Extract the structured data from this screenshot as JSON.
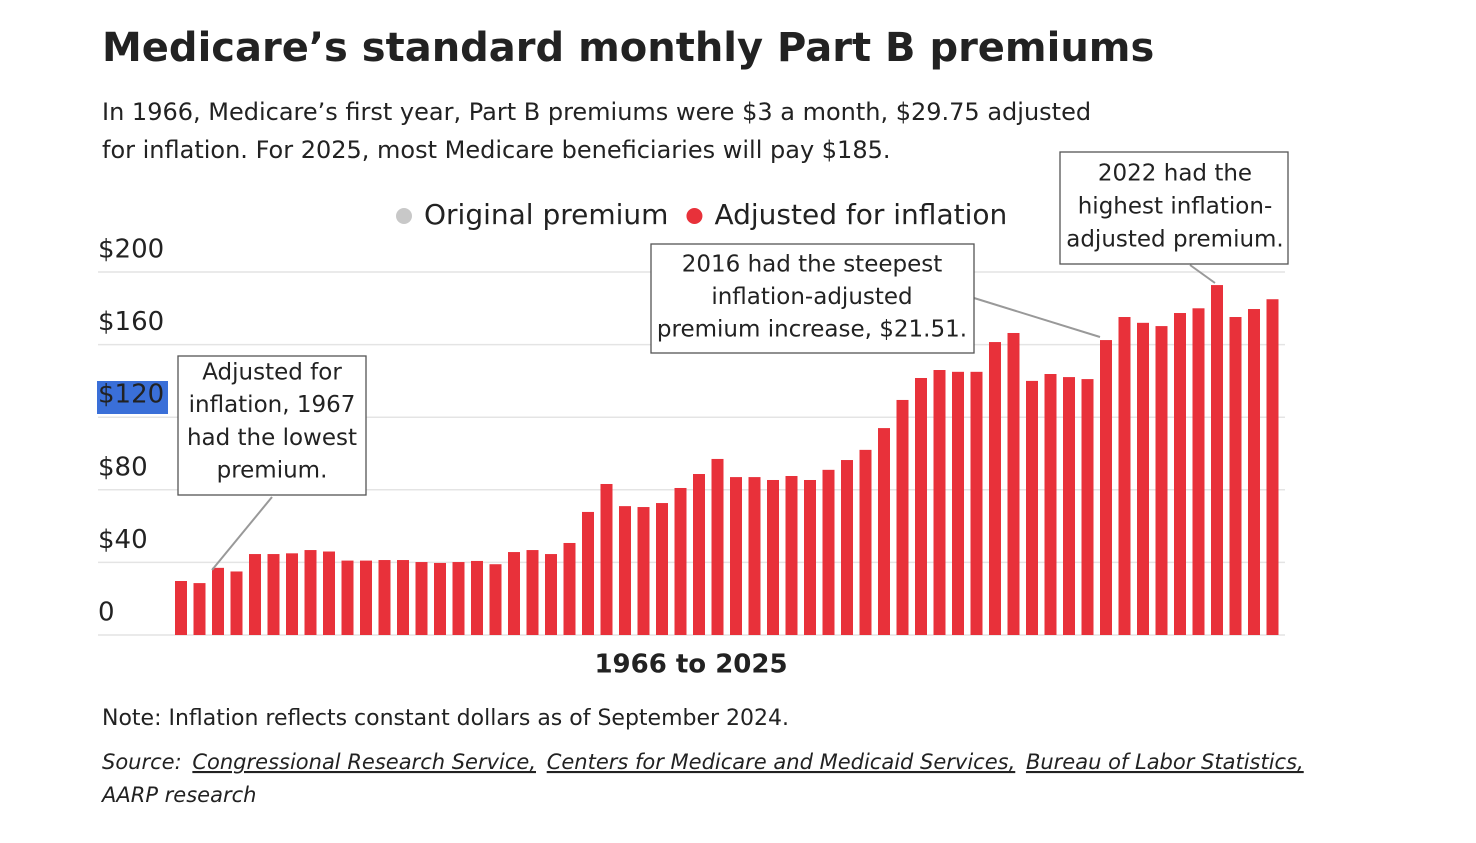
{
  "chart_data": {
    "type": "bar",
    "title": "Medicare’s standard monthly Part B premiums",
    "subtitle": [
      "In 1966, Medicare’s first year, Part B premiums were $3 a month, $29.75 adjusted",
      "for inflation. For 2025, most Medicare beneficiaries will pay $185."
    ],
    "x_label": "1966 to 2025",
    "series": [
      {
        "name": "Original premium",
        "color": "#c8c8c8",
        "values": [
          null,
          null,
          null,
          null,
          null,
          null,
          null,
          null,
          null,
          null,
          null,
          null,
          null,
          null,
          null,
          null,
          null,
          null,
          null,
          null,
          null,
          null,
          null,
          null,
          null,
          null,
          null,
          null,
          null,
          null,
          null,
          null,
          null,
          null,
          null,
          null,
          null,
          null,
          null,
          null,
          null,
          null,
          null,
          null,
          null,
          null,
          null,
          null,
          null,
          null,
          null,
          null,
          null,
          null,
          null,
          null,
          null,
          null,
          null,
          null
        ]
      },
      {
        "name": "Adjusted for inflation",
        "color": "#e8313a",
        "values": [
          29.75,
          28.6,
          37,
          35,
          44.6,
          44.6,
          45,
          46.8,
          46,
          41,
          41,
          41.3,
          41.3,
          40.2,
          39.7,
          40.2,
          40.8,
          39,
          45.7,
          46.8,
          44.6,
          50.7,
          67.8,
          83.2,
          71,
          70.5,
          72.7,
          81,
          88.7,
          97,
          87,
          87,
          85.4,
          87.6,
          85.4,
          91,
          96.4,
          102,
          114,
          129.5,
          141.6,
          146,
          145,
          145,
          161.4,
          166.4,
          140,
          143.8,
          142.1,
          141,
          162.5,
          175.2,
          172,
          170.2,
          177.4,
          180,
          192.8,
          175.2,
          179.6,
          185
        ]
      }
    ],
    "ylim": [
      0,
      200
    ],
    "yticks": [
      0,
      {
        "value": 40,
        "label": "$40"
      },
      {
        "value": 80,
        "label": "$80"
      },
      {
        "value": 120,
        "label": "$120"
      },
      {
        "value": 160,
        "label": "$160"
      },
      {
        "value": 200,
        "label": "$200"
      }
    ],
    "grid": true,
    "annotations": [
      {
        "lines": [
          "Adjusted for",
          "inflation, 1967",
          "had the lowest",
          "premium."
        ]
      },
      {
        "lines": [
          "2016 had the steepest",
          "inflation-adjusted",
          "premium increase, $21.51."
        ]
      },
      {
        "lines": [
          "2022 had the",
          "highest inflation-",
          "adjusted premium."
        ]
      }
    ],
    "note": "Note: Inflation reflects constant dollars as of September 2024.",
    "source": [
      "Source:",
      "Congressional Research Service,",
      "Centers for Medicare and Medicaid Services,",
      "Bureau of Labor Statistics,",
      "AARP research"
    ]
  }
}
